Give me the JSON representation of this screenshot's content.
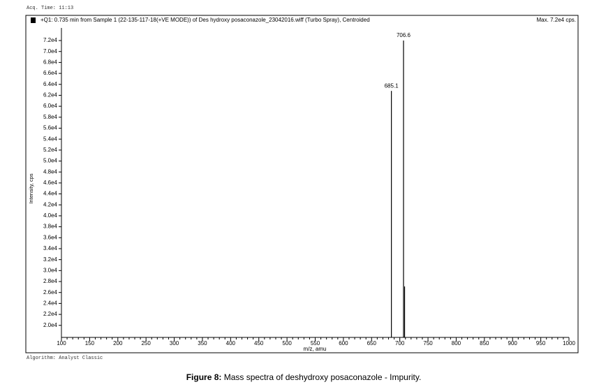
{
  "acq_time": "Acq. Time: 11:13",
  "algorithm": "Algorithm: Analyst Classic",
  "caption_label": "Figure 8:",
  "caption_text": " Mass spectra of deshydroxy posaconazole - Impurity.",
  "chart_data": {
    "type": "bar",
    "title": "+Q1: 0.735 min from Sample 1 (22-135-117-18(+VE MODE)) of Des hydroxy posaconazole_23042016.wiff (Turbo Spray), Centroided",
    "max_label": "Max. 7.2e4 cps.",
    "xlabel": "m/z, amu",
    "ylabel": "Intensity, cps",
    "x": [
      685.1,
      706.6,
      708.5
    ],
    "values": [
      62800,
      72000,
      27100
    ],
    "color": "#000000",
    "xlim": [
      100,
      1000
    ],
    "xticks": [
      100,
      150,
      200,
      250,
      300,
      350,
      400,
      450,
      500,
      550,
      600,
      650,
      700,
      750,
      800,
      850,
      900,
      950,
      1000
    ],
    "ylim": [
      17800,
      74300
    ],
    "yticks": [
      {
        "value": 20000,
        "label": "2.0e4"
      },
      {
        "value": 22000,
        "label": "2.2e4"
      },
      {
        "value": 24000,
        "label": "2.4e4"
      },
      {
        "value": 26000,
        "label": "2.6e4"
      },
      {
        "value": 28000,
        "label": "2.8e4"
      },
      {
        "value": 30000,
        "label": "3.0e4"
      },
      {
        "value": 32000,
        "label": "3.2e4"
      },
      {
        "value": 34000,
        "label": "3.4e4"
      },
      {
        "value": 36000,
        "label": "3.6e4"
      },
      {
        "value": 38000,
        "label": "3.8e4"
      },
      {
        "value": 40000,
        "label": "4.0e4"
      },
      {
        "value": 42000,
        "label": "4.2e4"
      },
      {
        "value": 44000,
        "label": "4.4e4"
      },
      {
        "value": 46000,
        "label": "4.6e4"
      },
      {
        "value": 48000,
        "label": "4.8e4"
      },
      {
        "value": 50000,
        "label": "5.0e4"
      },
      {
        "value": 52000,
        "label": "5.2e4"
      },
      {
        "value": 54000,
        "label": "5.4e4"
      },
      {
        "value": 56000,
        "label": "5.6e4"
      },
      {
        "value": 58000,
        "label": "5.8e4"
      },
      {
        "value": 60000,
        "label": "6.0e4"
      },
      {
        "value": 62000,
        "label": "6.2e4"
      },
      {
        "value": 64000,
        "label": "6.4e4"
      },
      {
        "value": 66000,
        "label": "6.6e4"
      },
      {
        "value": 68000,
        "label": "6.8e4"
      },
      {
        "value": 70000,
        "label": "7.0e4"
      },
      {
        "value": 72000,
        "label": "7.2e4"
      }
    ],
    "grid": false
  }
}
